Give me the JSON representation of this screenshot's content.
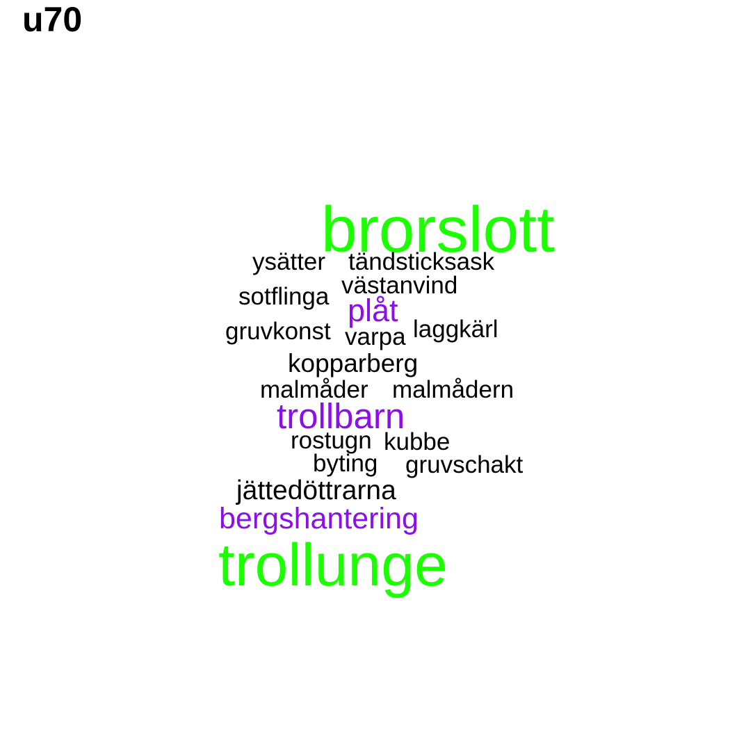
{
  "title": "u70",
  "colors": {
    "tier1": "#1cff00",
    "tier2": "#8b0fe8",
    "tier3": "#000000"
  },
  "words": [
    {
      "text": "brorslott",
      "tier": "tier1"
    },
    {
      "text": "ysätter",
      "tier": "tier3"
    },
    {
      "text": "tändsticksask",
      "tier": "tier3"
    },
    {
      "text": "västanvind",
      "tier": "tier3"
    },
    {
      "text": "sotflinga",
      "tier": "tier3"
    },
    {
      "text": "plåt",
      "tier": "tier2"
    },
    {
      "text": "gruvkonst",
      "tier": "tier3"
    },
    {
      "text": "varpa",
      "tier": "tier3"
    },
    {
      "text": "laggkärl",
      "tier": "tier3"
    },
    {
      "text": "kopparberg",
      "tier": "tier3"
    },
    {
      "text": "malmåder",
      "tier": "tier3"
    },
    {
      "text": "malmådern",
      "tier": "tier3"
    },
    {
      "text": "trollbarn",
      "tier": "tier2"
    },
    {
      "text": "rostugn",
      "tier": "tier3"
    },
    {
      "text": "kubbe",
      "tier": "tier3"
    },
    {
      "text": "byting",
      "tier": "tier3"
    },
    {
      "text": "gruvschakt",
      "tier": "tier3"
    },
    {
      "text": "jättedöttrarna",
      "tier": "tier3"
    },
    {
      "text": "bergshantering",
      "tier": "tier2"
    },
    {
      "text": "trollunge",
      "tier": "tier1"
    }
  ]
}
